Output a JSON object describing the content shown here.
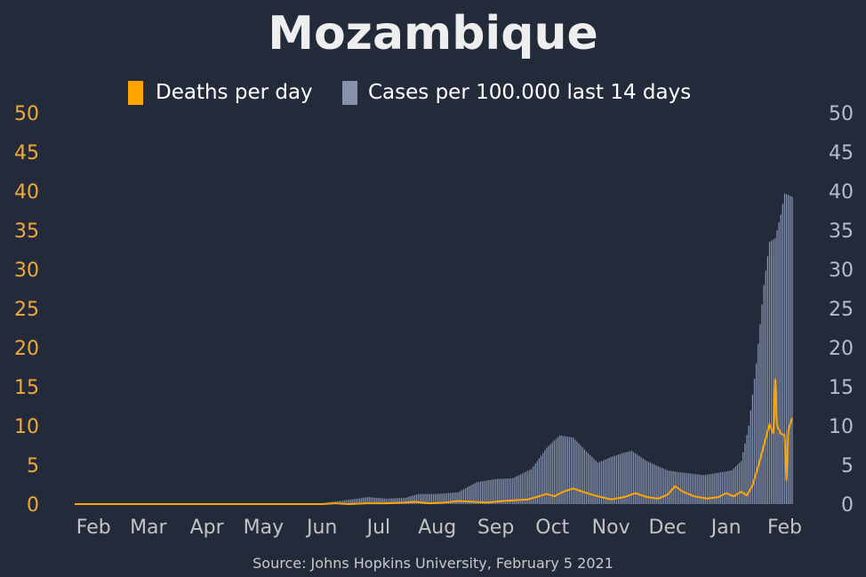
{
  "chart_data": {
    "type": "bar",
    "title": "Mozambique",
    "source": "Source: Johns Hopkins University, February 5 2021",
    "legend_placement": "top-center",
    "grid": false,
    "colors": {
      "deaths": "#ffa500",
      "cases": "#8592ad",
      "background": "#232b3b",
      "left_axis": "#f2a93b",
      "right_axis": "#b4bdce"
    },
    "y_left": {
      "ylim": [
        0,
        50
      ],
      "ticks": [
        "0",
        "5",
        "10",
        "15",
        "20",
        "25",
        "30",
        "35",
        "40",
        "45",
        "50"
      ]
    },
    "y_right": {
      "ylim": [
        0,
        50
      ],
      "ticks": [
        "0",
        "5",
        "10",
        "15",
        "20",
        "25",
        "30",
        "35",
        "40",
        "45",
        "50"
      ]
    },
    "x_range": [
      "2020-01-22",
      "2021-02-05"
    ],
    "x_ticks": [
      {
        "label": "Feb",
        "date": "2020-02-01"
      },
      {
        "label": "Mar",
        "date": "2020-03-01"
      },
      {
        "label": "Apr",
        "date": "2020-04-01"
      },
      {
        "label": "May",
        "date": "2020-05-01"
      },
      {
        "label": "Jun",
        "date": "2020-06-01"
      },
      {
        "label": "Jul",
        "date": "2020-07-01"
      },
      {
        "label": "Aug",
        "date": "2020-08-01"
      },
      {
        "label": "Sep",
        "date": "2020-09-01"
      },
      {
        "label": "Oct",
        "date": "2020-10-01"
      },
      {
        "label": "Nov",
        "date": "2020-11-01"
      },
      {
        "label": "Dec",
        "date": "2020-12-01"
      },
      {
        "label": "Jan",
        "date": "2021-01-01"
      },
      {
        "label": "Feb",
        "date": "2021-02-01"
      }
    ],
    "series": [
      {
        "name": "Deaths per day",
        "type": "line",
        "axis": "left",
        "points": [
          [
            "2020-01-22",
            0
          ],
          [
            "2020-06-01",
            0
          ],
          [
            "2020-06-08",
            0.1
          ],
          [
            "2020-06-15",
            0
          ],
          [
            "2020-06-25",
            0.1
          ],
          [
            "2020-07-05",
            0.1
          ],
          [
            "2020-07-15",
            0.2
          ],
          [
            "2020-07-20",
            0.3
          ],
          [
            "2020-07-28",
            0.1
          ],
          [
            "2020-08-05",
            0.2
          ],
          [
            "2020-08-12",
            0.4
          ],
          [
            "2020-08-20",
            0.3
          ],
          [
            "2020-08-27",
            0.2
          ],
          [
            "2020-09-05",
            0.4
          ],
          [
            "2020-09-12",
            0.5
          ],
          [
            "2020-09-18",
            0.6
          ],
          [
            "2020-09-24",
            1.0
          ],
          [
            "2020-09-28",
            1.3
          ],
          [
            "2020-10-02",
            1.0
          ],
          [
            "2020-10-07",
            1.6
          ],
          [
            "2020-10-12",
            2.0
          ],
          [
            "2020-10-18",
            1.5
          ],
          [
            "2020-10-25",
            1.0
          ],
          [
            "2020-11-01",
            0.6
          ],
          [
            "2020-11-08",
            0.9
          ],
          [
            "2020-11-14",
            1.4
          ],
          [
            "2020-11-20",
            0.9
          ],
          [
            "2020-11-26",
            0.7
          ],
          [
            "2020-12-01",
            1.2
          ],
          [
            "2020-12-05",
            2.3
          ],
          [
            "2020-12-09",
            1.6
          ],
          [
            "2020-12-15",
            1.0
          ],
          [
            "2020-12-22",
            0.7
          ],
          [
            "2020-12-28",
            0.9
          ],
          [
            "2021-01-01",
            1.4
          ],
          [
            "2021-01-05",
            1.0
          ],
          [
            "2021-01-09",
            1.6
          ],
          [
            "2021-01-12",
            1.1
          ],
          [
            "2021-01-15",
            2.4
          ],
          [
            "2021-01-18",
            4.8
          ],
          [
            "2021-01-21",
            7.5
          ],
          [
            "2021-01-24",
            10.2
          ],
          [
            "2021-01-26",
            9.0
          ],
          [
            "2021-01-27",
            16.0
          ],
          [
            "2021-01-28",
            10.0
          ],
          [
            "2021-01-30",
            9.0
          ],
          [
            "2021-02-01",
            8.8
          ],
          [
            "2021-02-02",
            3.0
          ],
          [
            "2021-02-03",
            9.5
          ],
          [
            "2021-02-05",
            11.0
          ]
        ]
      },
      {
        "name": "Cases per 100.000 last 14 days",
        "type": "bar",
        "axis": "right",
        "points": [
          [
            "2020-01-22",
            0
          ],
          [
            "2020-05-15",
            0
          ],
          [
            "2020-06-01",
            0.1
          ],
          [
            "2020-06-10",
            0.4
          ],
          [
            "2020-06-20",
            0.7
          ],
          [
            "2020-06-25",
            0.9
          ],
          [
            "2020-07-05",
            0.7
          ],
          [
            "2020-07-15",
            0.8
          ],
          [
            "2020-07-22",
            1.3
          ],
          [
            "2020-08-01",
            1.3
          ],
          [
            "2020-08-12",
            1.5
          ],
          [
            "2020-08-22",
            2.8
          ],
          [
            "2020-09-01",
            3.2
          ],
          [
            "2020-09-10",
            3.3
          ],
          [
            "2020-09-20",
            4.5
          ],
          [
            "2020-09-28",
            7.2
          ],
          [
            "2020-10-05",
            8.8
          ],
          [
            "2020-10-12",
            8.5
          ],
          [
            "2020-10-20",
            6.5
          ],
          [
            "2020-10-25",
            5.3
          ],
          [
            "2020-11-01",
            6.0
          ],
          [
            "2020-11-07",
            6.5
          ],
          [
            "2020-11-12",
            6.8
          ],
          [
            "2020-11-20",
            5.5
          ],
          [
            "2020-12-01",
            4.3
          ],
          [
            "2020-12-10",
            4.0
          ],
          [
            "2020-12-20",
            3.7
          ],
          [
            "2020-12-28",
            4.0
          ],
          [
            "2021-01-04",
            4.3
          ],
          [
            "2021-01-09",
            5.5
          ],
          [
            "2021-01-13",
            10.0
          ],
          [
            "2021-01-17",
            18.0
          ],
          [
            "2021-01-21",
            28.0
          ],
          [
            "2021-01-24",
            33.5
          ],
          [
            "2021-01-27",
            34.0
          ],
          [
            "2021-01-30",
            37.0
          ],
          [
            "2021-02-01",
            39.7
          ],
          [
            "2021-02-05",
            39.3
          ]
        ]
      }
    ]
  }
}
